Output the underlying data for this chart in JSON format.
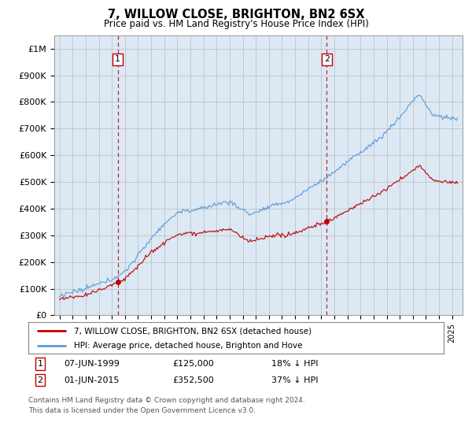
{
  "title": "7, WILLOW CLOSE, BRIGHTON, BN2 6SX",
  "subtitle": "Price paid vs. HM Land Registry's House Price Index (HPI)",
  "yticks": [
    0,
    100000,
    200000,
    300000,
    400000,
    500000,
    600000,
    700000,
    800000,
    900000,
    1000000
  ],
  "ytick_labels": [
    "£0",
    "£100K",
    "£200K",
    "£300K",
    "£400K",
    "£500K",
    "£600K",
    "£700K",
    "£800K",
    "£900K",
    "£1M"
  ],
  "hpi_color": "#5b9bd5",
  "price_color": "#c00000",
  "sale1_year": 1999.44,
  "sale1_price": 125000,
  "sale2_year": 2015.42,
  "sale2_price": 352500,
  "vline_color": "#c00000",
  "chart_bg": "#dce9f5",
  "legend_label1": "7, WILLOW CLOSE, BRIGHTON, BN2 6SX (detached house)",
  "legend_label2": "HPI: Average price, detached house, Brighton and Hove",
  "footnote1": "Contains HM Land Registry data © Crown copyright and database right 2024.",
  "footnote2": "This data is licensed under the Open Government Licence v3.0.",
  "background_color": "#ffffff",
  "grid_color": "#bbbbbb"
}
